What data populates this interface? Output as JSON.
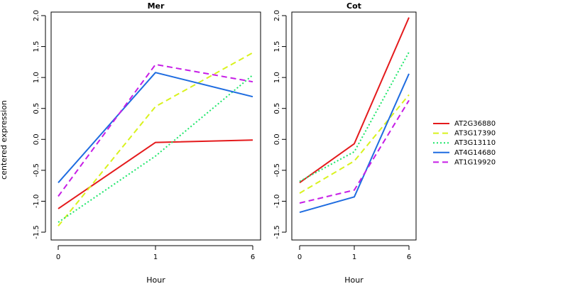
{
  "chart_data": {
    "type": "line",
    "ylabel": "centered expression",
    "xlabel": "Hour",
    "categories": [
      "0",
      "1",
      "6"
    ],
    "ylim": [
      -1.5,
      2.0
    ],
    "yticks": [
      "-1.5",
      "-1.0",
      "-0.5",
      "0.0",
      "0.5",
      "1.0",
      "1.5",
      "2.0"
    ],
    "grid": false,
    "legend_position": "right",
    "series_styles": [
      {
        "name": "AT2G36880",
        "color": "#e41a1c",
        "dash": "solid"
      },
      {
        "name": "AT3G17390",
        "color": "#d9f21e",
        "dash": "dashed"
      },
      {
        "name": "AT3G13110",
        "color": "#1ee66a",
        "dash": "dotted"
      },
      {
        "name": "AT4G14680",
        "color": "#1e6ce0",
        "dash": "solid"
      },
      {
        "name": "AT1G19920",
        "color": "#c61ee6",
        "dash": "dashed"
      }
    ],
    "panels": [
      {
        "title": "Mer",
        "series": [
          {
            "name": "AT2G36880",
            "values": [
              -1.12,
              -0.05,
              -0.01
            ]
          },
          {
            "name": "AT3G17390",
            "values": [
              -1.4,
              0.53,
              1.4
            ]
          },
          {
            "name": "AT3G13110",
            "values": [
              -1.34,
              -0.27,
              1.04
            ]
          },
          {
            "name": "AT4G14680",
            "values": [
              -0.7,
              1.08,
              0.69
            ]
          },
          {
            "name": "AT1G19920",
            "values": [
              -0.92,
              1.21,
              0.93
            ]
          }
        ]
      },
      {
        "title": "Cot",
        "series": [
          {
            "name": "AT2G36880",
            "values": [
              -0.7,
              -0.07,
              1.97
            ]
          },
          {
            "name": "AT3G17390",
            "values": [
              -0.87,
              -0.35,
              0.72
            ]
          },
          {
            "name": "AT3G13110",
            "values": [
              -0.68,
              -0.2,
              1.41
            ]
          },
          {
            "name": "AT4G14680",
            "values": [
              -1.18,
              -0.93,
              1.06
            ]
          },
          {
            "name": "AT1G19920",
            "values": [
              -1.03,
              -0.82,
              0.63
            ]
          }
        ]
      }
    ]
  }
}
